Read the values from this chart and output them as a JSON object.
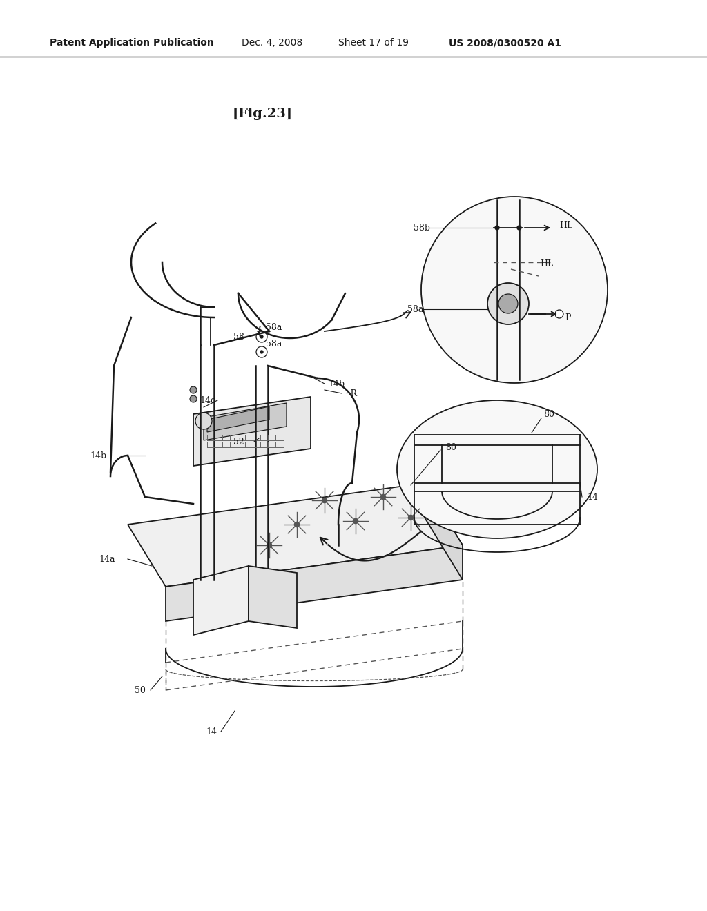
{
  "background_color": "#ffffff",
  "header_text": "Patent Application Publication",
  "header_date": "Dec. 4, 2008",
  "header_sheet": "Sheet 17 of 19",
  "header_patent": "US 2008/0300520 A1",
  "fig_label": "[Fig.23]",
  "line_color": "#1a1a1a",
  "dashed_color": "#555555"
}
